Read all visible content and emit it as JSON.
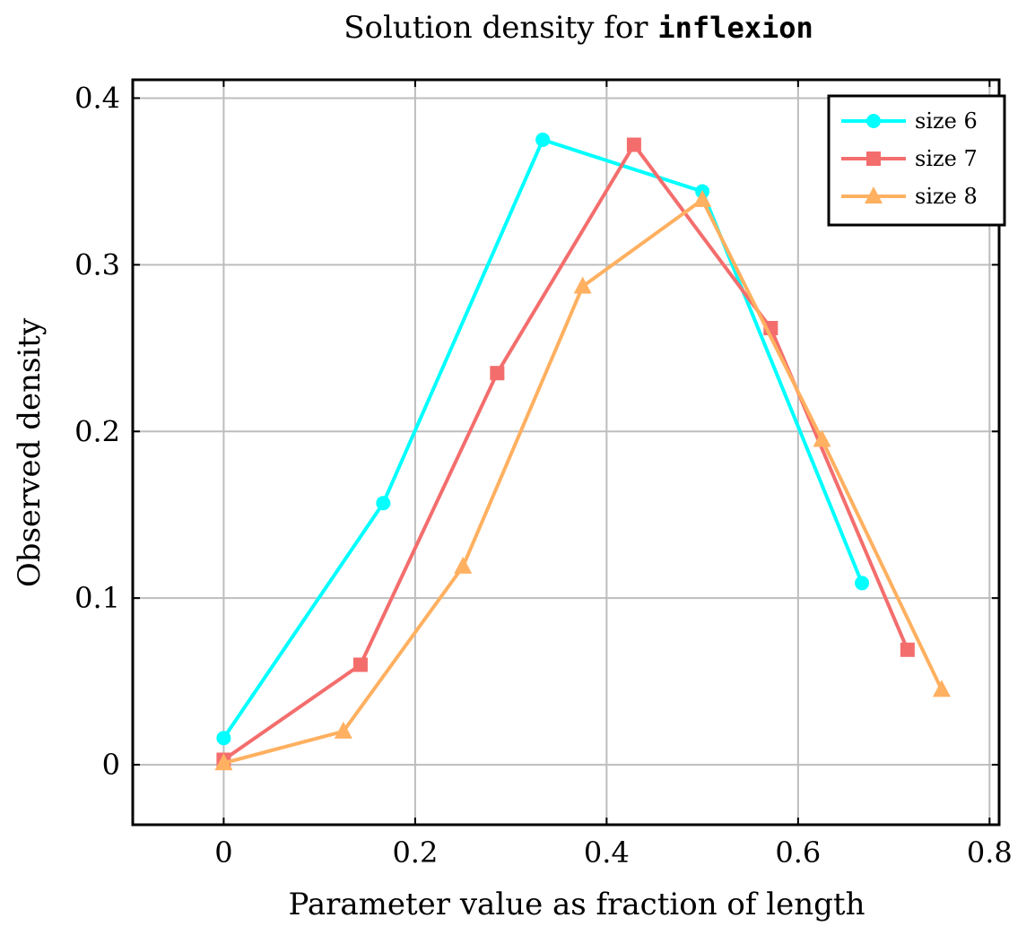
{
  "chart_data": {
    "type": "line",
    "title_prefix": "Solution density for ",
    "title_code": "inflexion",
    "xlabel": "Parameter value as fraction of length",
    "ylabel": "Observed density",
    "xlim": [
      -0.095,
      0.81
    ],
    "ylim": [
      -0.036,
      0.411
    ],
    "xticks": [
      0,
      0.2,
      0.4,
      0.6,
      0.8
    ],
    "xtick_labels": [
      "0",
      "0.2",
      "0.4",
      "0.6",
      "0.8"
    ],
    "yticks": [
      0,
      0.1,
      0.2,
      0.3,
      0.4
    ],
    "ytick_labels": [
      "0",
      "0.1",
      "0.2",
      "0.3",
      "0.4"
    ],
    "grid": true,
    "legend_position": "top-right",
    "series": [
      {
        "name": "size 6",
        "color": "#00ffff",
        "marker": "circle",
        "x": [
          0,
          0.1667,
          0.3333,
          0.5,
          0.6667
        ],
        "y": [
          0.016,
          0.157,
          0.375,
          0.344,
          0.109
        ]
      },
      {
        "name": "size 7",
        "color": "#f46d6d",
        "marker": "square",
        "x": [
          0,
          0.1429,
          0.2857,
          0.4286,
          0.5714,
          0.7143
        ],
        "y": [
          0.003,
          0.06,
          0.235,
          0.372,
          0.262,
          0.069
        ]
      },
      {
        "name": "size 8",
        "color": "#ffb060",
        "marker": "triangle",
        "x": [
          0,
          0.125,
          0.25,
          0.375,
          0.5,
          0.625,
          0.75
        ],
        "y": [
          0.001,
          0.02,
          0.119,
          0.287,
          0.339,
          0.195,
          0.045
        ]
      }
    ]
  }
}
